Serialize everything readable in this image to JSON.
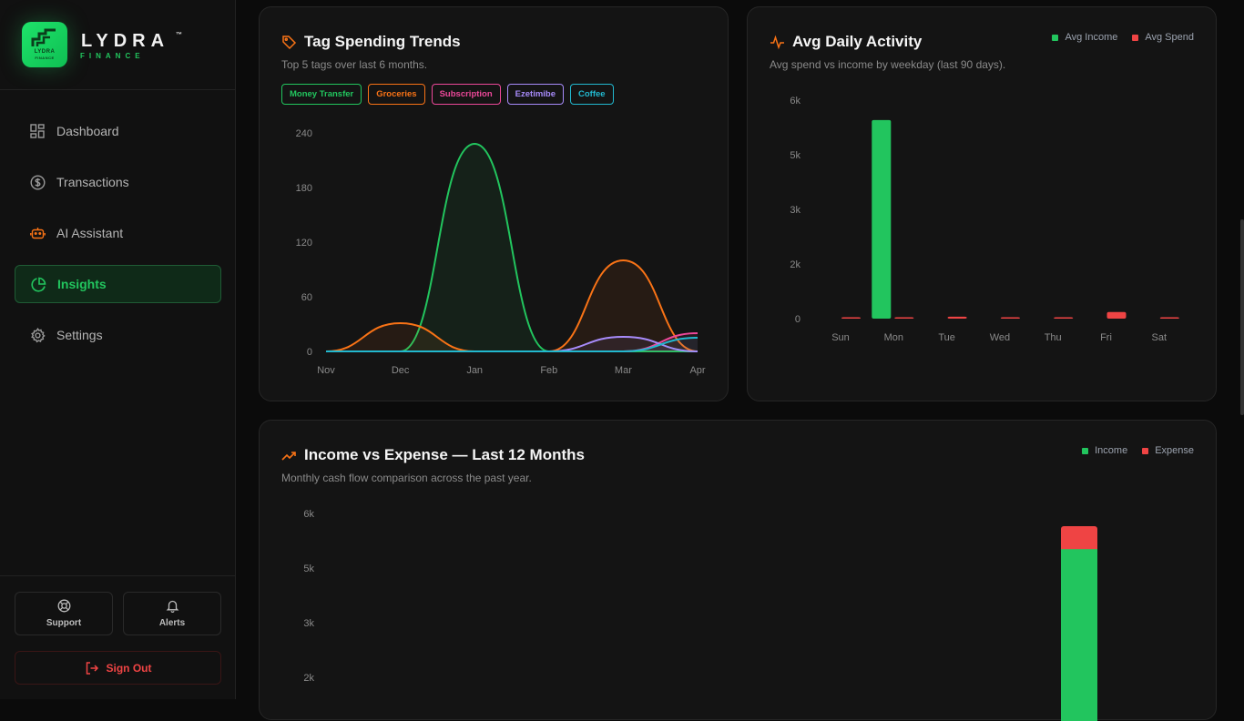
{
  "brand": {
    "name": "LYDRA",
    "tm": "™",
    "sub": "FINANCE",
    "logo_text": "LYDRA",
    "logo_sub": "FINANCE"
  },
  "nav": [
    {
      "label": "Dashboard",
      "icon": "dashboard-grid-icon",
      "active": false
    },
    {
      "label": "Transactions",
      "icon": "dollar-circle-icon",
      "active": false
    },
    {
      "label": "AI Assistant",
      "icon": "bot-icon",
      "active": false
    },
    {
      "label": "Insights",
      "icon": "pie-chart-icon",
      "active": true
    },
    {
      "label": "Settings",
      "icon": "gear-icon",
      "active": false
    }
  ],
  "bottom": {
    "support_label": "Support",
    "alerts_label": "Alerts",
    "signout_label": "Sign Out"
  },
  "colors": {
    "accent": "#22c55e",
    "danger": "#ef4444",
    "orange": "#f97316",
    "pink": "#ec4899",
    "purple": "#a78bfa",
    "cyan": "#22b8cf"
  },
  "tag_trends": {
    "title": "Tag Spending Trends",
    "subtitle": "Top 5 tags over last 6 months.",
    "tags": [
      {
        "label": "Money Transfer",
        "color": "#22c55e"
      },
      {
        "label": "Groceries",
        "color": "#f97316"
      },
      {
        "label": "Subscription",
        "color": "#ec4899"
      },
      {
        "label": "Ezetimibe",
        "color": "#a78bfa"
      },
      {
        "label": "Coffee",
        "color": "#22b8cf"
      }
    ]
  },
  "daily": {
    "title": "Avg Daily Activity",
    "subtitle": "Avg spend vs income by weekday (last 90 days).",
    "legend": [
      {
        "label": "Avg Income",
        "color": "#22c55e"
      },
      {
        "label": "Avg Spend",
        "color": "#ef4444"
      }
    ]
  },
  "income_expense": {
    "title": "Income vs Expense — Last 12 Months",
    "subtitle": "Monthly cash flow comparison across the past year.",
    "legend": [
      {
        "label": "Income",
        "color": "#22c55e"
      },
      {
        "label": "Expense",
        "color": "#ef4444"
      }
    ]
  },
  "chart_data": [
    {
      "type": "line",
      "title": "Tag Spending Trends",
      "categories": [
        "Nov",
        "Dec",
        "Jan",
        "Feb",
        "Mar",
        "Apr"
      ],
      "yticks": [
        "0",
        "60",
        "120",
        "180",
        "240"
      ],
      "ylim": [
        0,
        240
      ],
      "series": [
        {
          "name": "Money Transfer",
          "color": "#22c55e",
          "values": [
            0,
            0,
            228,
            0,
            0,
            0
          ]
        },
        {
          "name": "Groceries",
          "color": "#f97316",
          "values": [
            0,
            31,
            0,
            0,
            100,
            0
          ]
        },
        {
          "name": "Subscription",
          "color": "#ec4899",
          "values": [
            0,
            0,
            0,
            0,
            0,
            20
          ]
        },
        {
          "name": "Ezetimibe",
          "color": "#a78bfa",
          "values": [
            0,
            0,
            0,
            0,
            16,
            0
          ]
        },
        {
          "name": "Coffee",
          "color": "#22b8cf",
          "values": [
            0,
            0,
            0,
            0,
            0,
            15
          ]
        }
      ]
    },
    {
      "type": "bar",
      "title": "Avg Daily Activity",
      "categories": [
        "Sun",
        "Mon",
        "Tue",
        "Wed",
        "Thu",
        "Fri",
        "Sat"
      ],
      "yticks": [
        "0",
        "2k",
        "3k",
        "5k",
        "6k"
      ],
      "ylim": [
        0,
        6600
      ],
      "series": [
        {
          "name": "Avg Income",
          "color": "#22c55e",
          "values": [
            0,
            6000,
            0,
            0,
            0,
            0,
            0
          ]
        },
        {
          "name": "Avg Spend",
          "color": "#ef4444",
          "values": [
            15,
            30,
            60,
            20,
            15,
            200,
            25
          ]
        }
      ]
    },
    {
      "type": "bar",
      "stacked": true,
      "title": "Income vs Expense — Last 12 Months",
      "yticks": [
        "6k",
        "5k",
        "3k",
        "2k"
      ],
      "series": [
        {
          "name": "Income",
          "color": "#22c55e",
          "values": [
            5380
          ]
        },
        {
          "name": "Expense",
          "color": "#ef4444",
          "values": [
            420
          ]
        }
      ]
    }
  ]
}
